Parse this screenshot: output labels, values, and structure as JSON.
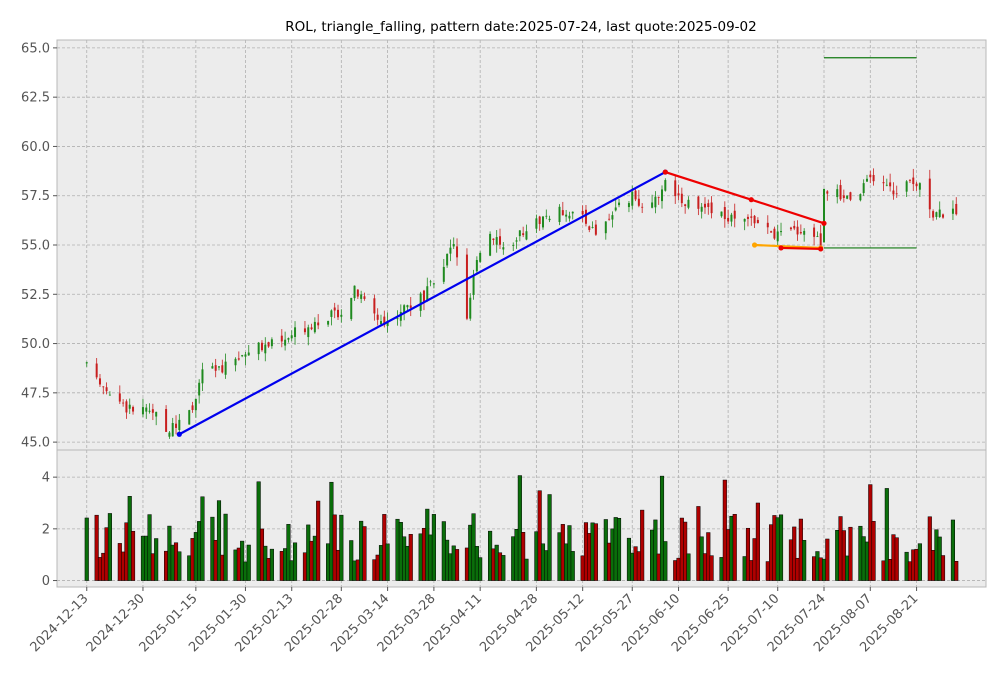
{
  "chart_data": {
    "type": "candlestick",
    "title": "ROL, triangle_falling, pattern date:2025-07-24, last quote:2025-09-02",
    "colors": {
      "up": "#1f8a1f",
      "down": "#c81f1f",
      "vol_up": "#0a6e0a",
      "vol_down": "#b00000",
      "trend_up": "#0000ee",
      "trend_down": "#ee0000",
      "support": "#ffa500",
      "target": "#137a13",
      "grid": "#b0b0b0",
      "panel_bg": "#ececec"
    },
    "price_axis": {
      "ylim": [
        44.6,
        65.4
      ],
      "ticks": [
        "45.0",
        "47.5",
        "50.0",
        "52.5",
        "55.0",
        "57.5",
        "60.0",
        "62.5",
        "65.0"
      ],
      "tick_values": [
        45,
        47.5,
        50,
        52.5,
        55,
        57.5,
        60,
        62.5,
        65
      ]
    },
    "volume_axis": {
      "ylim": [
        -0.25,
        5.05
      ],
      "ticks": [
        "0",
        "2",
        "4"
      ],
      "tick_values": [
        0,
        2,
        4
      ]
    },
    "x_axis": {
      "xlim": [
        "2024-12-04",
        "2025-09-11"
      ],
      "ticks": [
        "2024-12-13",
        "2024-12-30",
        "2025-01-15",
        "2025-01-30",
        "2025-02-13",
        "2025-02-28",
        "2025-03-14",
        "2025-03-28",
        "2025-04-11",
        "2025-04-28",
        "2025-05-12",
        "2025-05-27",
        "2025-06-10",
        "2025-06-25",
        "2025-07-10",
        "2025-07-24",
        "2025-08-07",
        "2025-08-21"
      ]
    },
    "price_knots": [
      [
        "2024-12-13",
        48.8
      ],
      [
        "2024-12-20",
        47.6
      ],
      [
        "2024-12-24",
        46.8
      ],
      [
        "2025-01-02",
        46.4
      ],
      [
        "2025-01-07",
        45.6
      ],
      [
        "2025-01-10",
        45.9
      ],
      [
        "2025-01-14",
        46.6
      ],
      [
        "2025-01-17",
        48.6
      ],
      [
        "2025-01-24",
        48.8
      ],
      [
        "2025-01-29",
        49.4
      ],
      [
        "2025-02-05",
        49.9
      ],
      [
        "2025-02-11",
        50.1
      ],
      [
        "2025-02-14",
        50.6
      ],
      [
        "2025-02-21",
        51.2
      ],
      [
        "2025-02-28",
        51.7
      ],
      [
        "2025-03-04",
        52.7
      ],
      [
        "2025-03-10",
        51.6
      ],
      [
        "2025-03-13",
        51.0
      ],
      [
        "2025-03-18",
        51.7
      ],
      [
        "2025-03-25",
        52.4
      ],
      [
        "2025-03-31",
        53.8
      ],
      [
        "2025-04-03",
        55.2
      ],
      [
        "2025-04-07",
        51.0
      ],
      [
        "2025-04-10",
        54.5
      ],
      [
        "2025-04-14",
        55.6
      ],
      [
        "2025-04-21",
        54.8
      ],
      [
        "2025-04-24",
        55.8
      ],
      [
        "2025-05-01",
        56.5
      ],
      [
        "2025-05-07",
        56.8
      ],
      [
        "2025-05-13",
        56.2
      ],
      [
        "2025-05-16",
        55.6
      ],
      [
        "2025-05-21",
        56.6
      ],
      [
        "2025-05-27",
        57.4
      ],
      [
        "2025-06-02",
        56.9
      ],
      [
        "2025-06-06",
        58.3
      ],
      [
        "2025-06-10",
        57.5
      ],
      [
        "2025-06-16",
        56.8
      ],
      [
        "2025-06-20",
        56.6
      ],
      [
        "2025-06-25",
        56.4
      ],
      [
        "2025-06-30",
        56.2
      ],
      [
        "2025-07-03",
        56.3
      ],
      [
        "2025-07-08",
        55.6
      ],
      [
        "2025-07-11",
        55.5
      ],
      [
        "2025-07-16",
        55.8
      ],
      [
        "2025-07-21",
        55.6
      ],
      [
        "2025-07-23",
        55.1
      ],
      [
        "2025-07-24",
        58.0
      ],
      [
        "2025-07-29",
        57.5
      ],
      [
        "2025-08-04",
        57.6
      ],
      [
        "2025-08-07",
        58.4
      ],
      [
        "2025-08-12",
        58.0
      ],
      [
        "2025-08-15",
        57.6
      ],
      [
        "2025-08-19",
        58.1
      ],
      [
        "2025-08-22",
        58.3
      ],
      [
        "2025-08-26",
        56.6
      ],
      [
        "2025-09-02",
        56.6
      ]
    ],
    "pattern_lines": [
      {
        "role": "uptrend",
        "color": "trend_up",
        "points": [
          [
            "2025-01-10",
            45.4
          ],
          [
            "2025-06-06",
            58.7
          ]
        ]
      },
      {
        "role": "resistance",
        "color": "trend_down",
        "points": [
          [
            "2025-06-06",
            58.7
          ],
          [
            "2025-07-02",
            57.3
          ],
          [
            "2025-07-24",
            56.1
          ]
        ]
      },
      {
        "role": "support",
        "color": "support",
        "points": [
          [
            "2025-07-03",
            55.0
          ],
          [
            "2025-07-23",
            54.85
          ]
        ]
      },
      {
        "role": "support-low",
        "color": "trend_down",
        "points": [
          [
            "2025-07-11",
            54.85
          ],
          [
            "2025-07-23",
            54.8
          ]
        ]
      },
      {
        "role": "target-high",
        "color": "target",
        "points": [
          [
            "2025-07-24",
            64.5
          ],
          [
            "2025-08-21",
            64.5
          ]
        ]
      },
      {
        "role": "target-low",
        "color": "target",
        "points": [
          [
            "2025-07-24",
            54.85
          ],
          [
            "2025-08-21",
            54.85
          ]
        ]
      }
    ]
  }
}
